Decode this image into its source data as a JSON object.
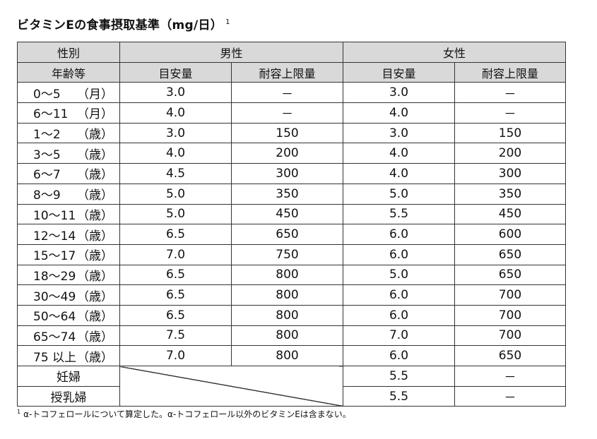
{
  "title": {
    "text": "ビタミンEの食事摂取基準（mg/日）",
    "superscript": "1"
  },
  "table": {
    "header_row1": {
      "label": "性別",
      "male": "男性",
      "female": "女性"
    },
    "header_row2": {
      "label": "年齢等",
      "male_ai": "目安量",
      "male_ul": "耐容上限量",
      "female_ai": "目安量",
      "female_ul": "耐容上限量"
    },
    "rows": [
      {
        "age": "0～5",
        "unit": "（月）",
        "male_ai": "3.0",
        "male_ul": "－",
        "female_ai": "3.0",
        "female_ul": "－"
      },
      {
        "age": "6～11",
        "unit": "（月）",
        "male_ai": "4.0",
        "male_ul": "－",
        "female_ai": "4.0",
        "female_ul": "－"
      },
      {
        "age": "1～2",
        "unit": "（歳）",
        "male_ai": "3.0",
        "male_ul": "150",
        "female_ai": "3.0",
        "female_ul": "150"
      },
      {
        "age": "3～5",
        "unit": "（歳）",
        "male_ai": "4.0",
        "male_ul": "200",
        "female_ai": "4.0",
        "female_ul": "200"
      },
      {
        "age": "6～7",
        "unit": "（歳）",
        "male_ai": "4.5",
        "male_ul": "300",
        "female_ai": "4.0",
        "female_ul": "300"
      },
      {
        "age": "8～9",
        "unit": "（歳）",
        "male_ai": "5.0",
        "male_ul": "350",
        "female_ai": "5.0",
        "female_ul": "350"
      },
      {
        "age": "10～11",
        "unit": "（歳）",
        "male_ai": "5.0",
        "male_ul": "450",
        "female_ai": "5.5",
        "female_ul": "450"
      },
      {
        "age": "12～14",
        "unit": "（歳）",
        "male_ai": "6.5",
        "male_ul": "650",
        "female_ai": "6.0",
        "female_ul": "600"
      },
      {
        "age": "15～17",
        "unit": "（歳）",
        "male_ai": "7.0",
        "male_ul": "750",
        "female_ai": "6.0",
        "female_ul": "650"
      },
      {
        "age": "18～29",
        "unit": "（歳）",
        "male_ai": "6.5",
        "male_ul": "800",
        "female_ai": "5.0",
        "female_ul": "650"
      },
      {
        "age": "30～49",
        "unit": "（歳）",
        "male_ai": "6.5",
        "male_ul": "800",
        "female_ai": "6.0",
        "female_ul": "700"
      },
      {
        "age": "50～64",
        "unit": "（歳）",
        "male_ai": "6.5",
        "male_ul": "800",
        "female_ai": "6.0",
        "female_ul": "700"
      },
      {
        "age": "65～74",
        "unit": "（歳）",
        "male_ai": "7.5",
        "male_ul": "800",
        "female_ai": "7.0",
        "female_ul": "700"
      },
      {
        "age": "75 以上",
        "unit": "（歳）",
        "male_ai": "7.0",
        "male_ul": "800",
        "female_ai": "6.0",
        "female_ul": "650"
      }
    ],
    "special_rows": [
      {
        "label": "妊婦",
        "female_ai": "5.5",
        "female_ul": "－"
      },
      {
        "label": "授乳婦",
        "female_ai": "5.5",
        "female_ul": "－"
      }
    ]
  },
  "footnote": {
    "marker": "1",
    "text": "α-トコフェロールについて算定した。α-トコフェロール以外のビタミンEは含まない。"
  }
}
